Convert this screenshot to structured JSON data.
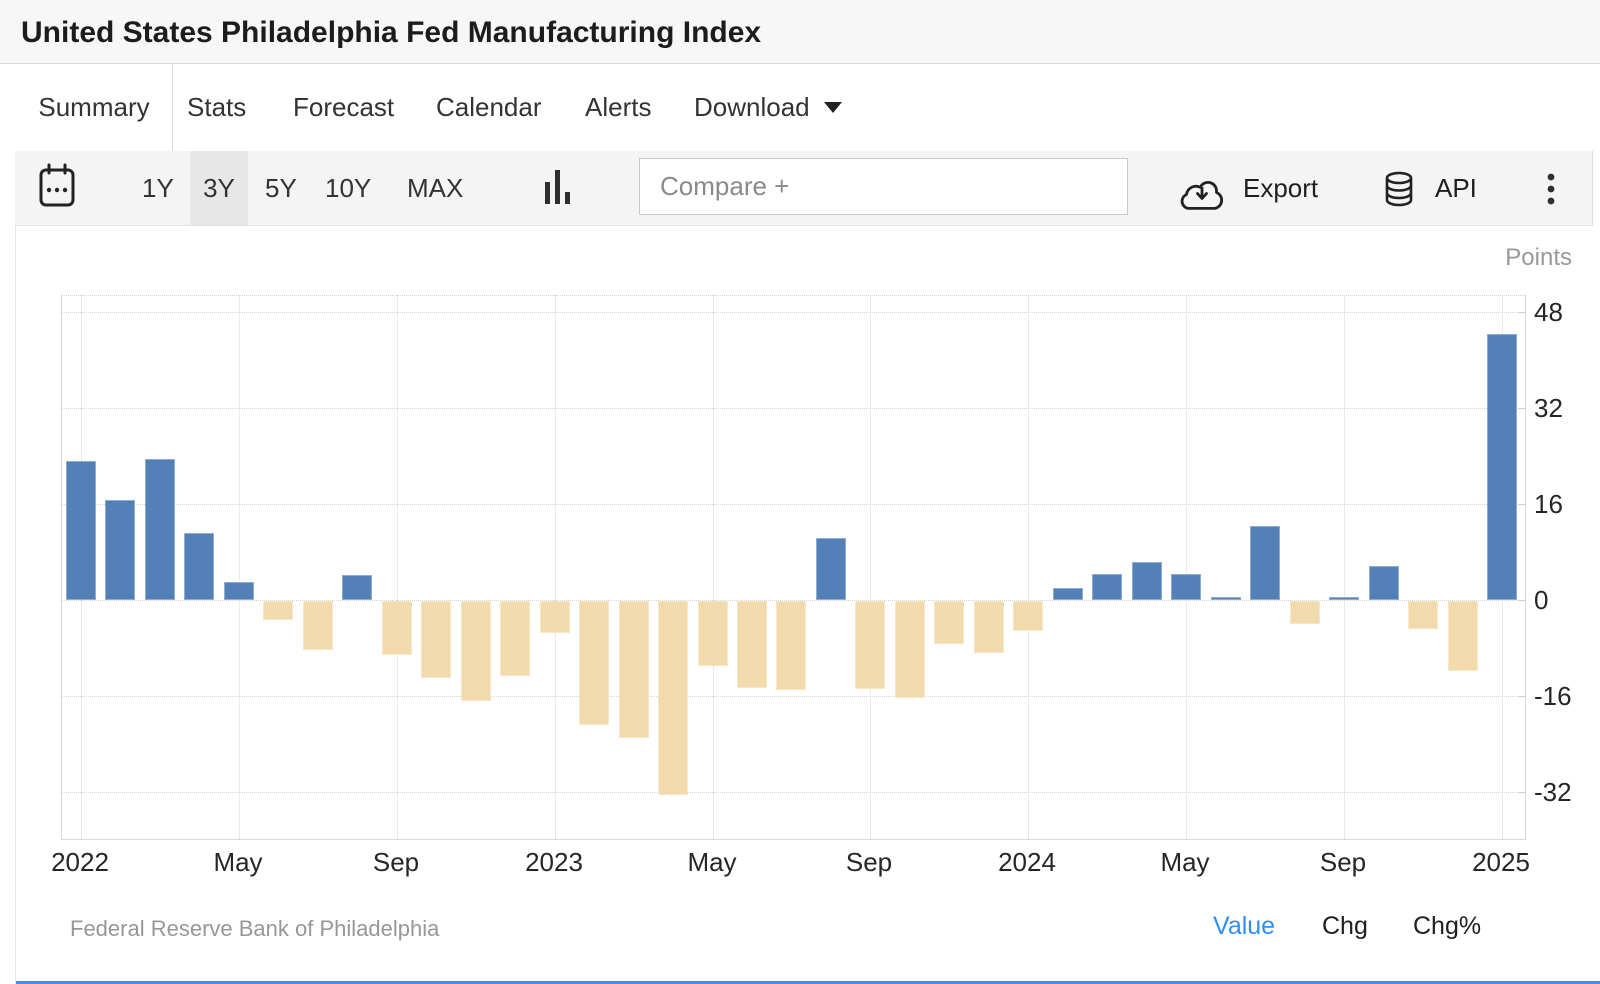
{
  "header": {
    "title": "United States Philadelphia Fed Manufacturing Index"
  },
  "tabs": [
    {
      "label": "Summary",
      "active": true
    },
    {
      "label": "Stats",
      "active": false
    },
    {
      "label": "Forecast",
      "active": false
    },
    {
      "label": "Calendar",
      "active": false
    },
    {
      "label": "Alerts",
      "active": false
    },
    {
      "label": "Download",
      "active": false,
      "has_caret": true
    }
  ],
  "toolbar": {
    "ranges": [
      "1Y",
      "3Y",
      "5Y",
      "10Y",
      "MAX"
    ],
    "active_range": "3Y",
    "compare_placeholder": "Compare +",
    "export_label": "Export",
    "api_label": "API",
    "icons": [
      "calendar-icon",
      "column-chart-icon",
      "cloud-download-icon",
      "database-icon",
      "kebab-menu-icon"
    ]
  },
  "chart_data": {
    "type": "bar",
    "title": "United States Philadelphia Fed Manufacturing Index",
    "unit_label": "Points",
    "grid": "dotted",
    "legend_position": "none",
    "ylim": [
      -40,
      50.8
    ],
    "y_ticks": [
      48,
      32,
      16,
      0,
      -16,
      -32
    ],
    "x_tick_labels": [
      {
        "month_index": 0,
        "label": "2022"
      },
      {
        "month_index": 4,
        "label": "May"
      },
      {
        "month_index": 8,
        "label": "Sep"
      },
      {
        "month_index": 12,
        "label": "2023"
      },
      {
        "month_index": 16,
        "label": "May"
      },
      {
        "month_index": 20,
        "label": "Sep"
      },
      {
        "month_index": 24,
        "label": "2024"
      },
      {
        "month_index": 28,
        "label": "May"
      },
      {
        "month_index": 32,
        "label": "Sep"
      },
      {
        "month_index": 36,
        "label": "2025"
      }
    ],
    "categories": [
      "Jan 2022",
      "Feb 2022",
      "Mar 2022",
      "Apr 2022",
      "May 2022",
      "Jun 2022",
      "Jul 2022",
      "Aug 2022",
      "Sep 2022",
      "Oct 2022",
      "Nov 2022",
      "Dec 2022",
      "Jan 2023",
      "Feb 2023",
      "Mar 2023",
      "Apr 2023",
      "May 2023",
      "Jun 2023",
      "Jul 2023",
      "Aug 2023",
      "Sep 2023",
      "Oct 2023",
      "Nov 2023",
      "Dec 2023",
      "Jan 2024",
      "Feb 2024",
      "Mar 2024",
      "Apr 2024",
      "May 2024",
      "Jun 2024",
      "Jul 2024",
      "Aug 2024",
      "Sep 2024",
      "Oct 2024",
      "Nov 2024",
      "Dec 2024",
      "Jan 2025"
    ],
    "values": [
      23.2,
      16.7,
      23.5,
      11.1,
      3.0,
      -3.2,
      -8.2,
      4.1,
      -9.0,
      -12.8,
      -16.7,
      -12.5,
      -5.4,
      -20.7,
      -22.8,
      -32.4,
      -10.8,
      -14.5,
      -14.8,
      10.3,
      -14.7,
      -16.1,
      -7.2,
      -8.6,
      -5.0,
      2.0,
      4.3,
      6.4,
      4.3,
      0.5,
      12.4,
      -3.8,
      0.5,
      5.6,
      -4.7,
      -11.6,
      44.3
    ],
    "positive_color": "#5480b8",
    "negative_color": "#f1dbad"
  },
  "footer": {
    "source": "Federal Reserve Bank of Philadelphia",
    "links": [
      {
        "label": "Value",
        "active": true
      },
      {
        "label": "Chg",
        "active": false
      },
      {
        "label": "Chg%",
        "active": false
      }
    ]
  },
  "colors": {
    "positive_bar": "#5480b8",
    "negative_bar": "#f1dbad",
    "active_link_blue": "#2e8ef7",
    "bottom_divider_blue": "#4a8fd9",
    "toolbar_background": "#f4f4f4"
  }
}
